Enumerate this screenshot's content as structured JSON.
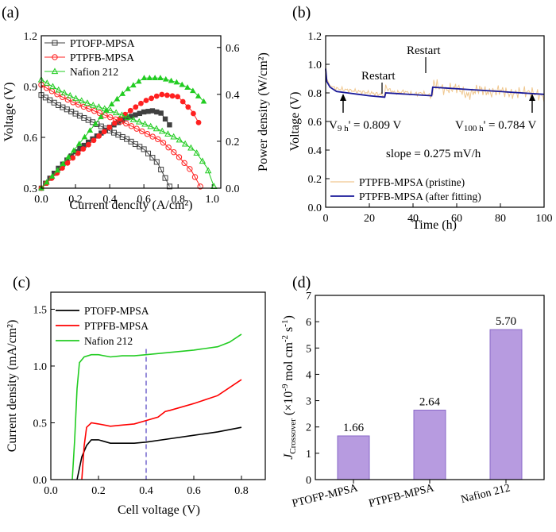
{
  "panels": {
    "a": {
      "tag": "(a)"
    },
    "b": {
      "tag": "(b)"
    },
    "c": {
      "tag": "(c)"
    },
    "d": {
      "tag": "(d)"
    }
  },
  "chart_data": [
    {
      "id": "a",
      "type": "line",
      "xlabel": "Current dencity (A/cm²)",
      "ylabel": "Voltage (V)",
      "y2label": "Power density (W/cm²)",
      "xlim": [
        0.0,
        1.05
      ],
      "ylim": [
        0.3,
        1.2
      ],
      "y2lim": [
        0.0,
        0.65
      ],
      "xticks": [
        "0.0",
        "0.2",
        "0.4",
        "0.6",
        "0.8",
        "1.0"
      ],
      "yticks": [
        "0.3",
        "0.6",
        "0.9",
        "1.2"
      ],
      "y2ticks": [
        "0.0",
        "0.2",
        "0.4",
        "0.6"
      ],
      "legend_position": "top-left",
      "series": [
        {
          "name": "PTOFP-MPSA",
          "color": "#404040",
          "marker": "open-square",
          "voltage": {
            "x": [
              0.0,
              0.1,
              0.2,
              0.3,
              0.4,
              0.5,
              0.6,
              0.68,
              0.75
            ],
            "y": [
              0.85,
              0.79,
              0.74,
              0.69,
              0.64,
              0.59,
              0.53,
              0.45,
              0.31
            ]
          },
          "power": {
            "x": [
              0.0,
              0.1,
              0.2,
              0.3,
              0.4,
              0.5,
              0.6,
              0.65,
              0.7,
              0.75
            ],
            "y": [
              0.0,
              0.085,
              0.155,
              0.21,
              0.26,
              0.3,
              0.325,
              0.33,
              0.32,
              0.27
            ]
          }
        },
        {
          "name": "PTPFB-MPSA",
          "color": "#ff2020",
          "marker": "open-circle",
          "voltage": {
            "x": [
              0.0,
              0.1,
              0.2,
              0.3,
              0.4,
              0.5,
              0.6,
              0.7,
              0.8,
              0.88,
              0.93
            ],
            "y": [
              0.91,
              0.85,
              0.8,
              0.76,
              0.72,
              0.68,
              0.63,
              0.58,
              0.49,
              0.4,
              0.31
            ]
          },
          "power": {
            "x": [
              0.0,
              0.1,
              0.2,
              0.3,
              0.4,
              0.5,
              0.6,
              0.7,
              0.8,
              0.88,
              0.92
            ],
            "y": [
              0.0,
              0.07,
              0.14,
              0.2,
              0.26,
              0.32,
              0.37,
              0.4,
              0.39,
              0.33,
              0.28
            ]
          }
        },
        {
          "name": "Nafion 212",
          "color": "#22cc22",
          "marker": "open-triangle",
          "voltage": {
            "x": [
              0.0,
              0.1,
              0.2,
              0.3,
              0.4,
              0.5,
              0.6,
              0.7,
              0.8,
              0.9,
              0.97,
              1.01
            ],
            "y": [
              0.94,
              0.88,
              0.83,
              0.79,
              0.76,
              0.72,
              0.68,
              0.64,
              0.59,
              0.52,
              0.42,
              0.31
            ]
          },
          "power": {
            "x": [
              0.0,
              0.1,
              0.2,
              0.3,
              0.4,
              0.5,
              0.6,
              0.7,
              0.8,
              0.88,
              0.95
            ],
            "y": [
              0.0,
              0.08,
              0.17,
              0.26,
              0.35,
              0.42,
              0.47,
              0.47,
              0.45,
              0.42,
              0.37
            ]
          }
        }
      ]
    },
    {
      "id": "b",
      "type": "line",
      "xlabel": "Time (h)",
      "ylabel": "Voltage (V)",
      "xlim": [
        0,
        100
      ],
      "ylim": [
        0.0,
        1.2
      ],
      "xticks": [
        "0",
        "20",
        "40",
        "60",
        "80",
        "100"
      ],
      "yticks": [
        "0.0",
        "0.2",
        "0.4",
        "0.6",
        "0.8",
        "1.0",
        "1.2"
      ],
      "annotations": [
        "Restart",
        "Restart",
        "V",
        "9 h",
        "' = 0.809 V",
        "V",
        "100 h",
        "' = 0.784 V",
        "slope = 0.275 mV/h"
      ],
      "legend_position": "bottom-left",
      "series": [
        {
          "name": "PTPFB-MPSA (pristine)",
          "color": "#f0c890",
          "x": [
            0,
            0.5,
            2,
            5,
            10,
            15,
            20,
            25,
            27,
            27.5,
            28,
            32,
            36,
            40,
            44,
            48,
            49,
            49.5,
            50,
            55,
            60,
            65,
            70,
            75,
            80,
            85,
            90,
            95,
            100
          ],
          "y": [
            0.99,
            0.9,
            0.85,
            0.83,
            0.82,
            0.81,
            0.8,
            0.79,
            0.78,
            0.86,
            0.83,
            0.8,
            0.81,
            0.79,
            0.8,
            0.78,
            0.78,
            0.89,
            0.86,
            0.82,
            0.84,
            0.78,
            0.83,
            0.8,
            0.82,
            0.79,
            0.81,
            0.8,
            0.77
          ]
        },
        {
          "name": "PTPFB-MPSA (after fitting)",
          "color": "#1a1a9a",
          "x": [
            0,
            0.5,
            2,
            5,
            10,
            15,
            20,
            27,
            27.5,
            48.5,
            49,
            100
          ],
          "y": [
            0.97,
            0.88,
            0.84,
            0.81,
            0.8,
            0.79,
            0.78,
            0.77,
            0.8,
            0.78,
            0.84,
            0.79
          ]
        }
      ]
    },
    {
      "id": "c",
      "type": "line",
      "xlabel": "Cell voltage (V)",
      "ylabel": "Current density (mA/cm²)",
      "xlim": [
        0.0,
        0.9
      ],
      "ylim": [
        0.0,
        1.65
      ],
      "xticks": [
        "0.0",
        "0.2",
        "0.4",
        "0.6",
        "0.8"
      ],
      "yticks": [
        "0.0",
        "0.5",
        "1.0",
        "1.5"
      ],
      "reference_line_x": 0.4,
      "legend_position": "top-left",
      "series": [
        {
          "name": "PTOFP-MPSA",
          "color": "#000000",
          "x": [
            0.11,
            0.13,
            0.15,
            0.17,
            0.2,
            0.25,
            0.3,
            0.35,
            0.4,
            0.5,
            0.6,
            0.7,
            0.8
          ],
          "y": [
            0.0,
            0.2,
            0.3,
            0.35,
            0.35,
            0.32,
            0.32,
            0.32,
            0.33,
            0.36,
            0.39,
            0.42,
            0.46
          ]
        },
        {
          "name": "PTPFB-MPSA",
          "color": "#ff0000",
          "x": [
            0.13,
            0.14,
            0.15,
            0.17,
            0.2,
            0.25,
            0.3,
            0.35,
            0.4,
            0.45,
            0.48,
            0.5,
            0.6,
            0.7,
            0.8
          ],
          "y": [
            0.0,
            0.3,
            0.46,
            0.5,
            0.49,
            0.47,
            0.48,
            0.49,
            0.52,
            0.55,
            0.6,
            0.61,
            0.67,
            0.74,
            0.88
          ]
        },
        {
          "name": "Nafion 212",
          "color": "#22cc22",
          "x": [
            0.09,
            0.1,
            0.11,
            0.12,
            0.14,
            0.17,
            0.2,
            0.25,
            0.3,
            0.35,
            0.4,
            0.5,
            0.6,
            0.7,
            0.75,
            0.8
          ],
          "y": [
            0.0,
            0.35,
            0.8,
            1.03,
            1.08,
            1.1,
            1.1,
            1.08,
            1.09,
            1.09,
            1.1,
            1.12,
            1.14,
            1.17,
            1.21,
            1.28
          ]
        }
      ]
    },
    {
      "id": "d",
      "type": "bar",
      "ylabel_main": "J",
      "ylabel_sub": "Crossover",
      "ylabel_rest": " (×10",
      "ylabel_exp1": "-9",
      "ylabel_mid": " mol cm",
      "ylabel_exp2": "-2",
      "ylabel_mid2": " s",
      "ylabel_exp3": "-1",
      "ylabel_end": ")",
      "ylim": [
        0,
        7
      ],
      "yticks": [
        "0",
        "1",
        "2",
        "3",
        "4",
        "5",
        "6",
        "7"
      ],
      "categories": [
        "PTOFP-MPSA",
        "PTPFB-MPSA",
        "Nafion 212"
      ],
      "values": [
        1.66,
        2.64,
        5.7
      ],
      "value_labels": [
        "1.66",
        "2.64",
        "5.70"
      ],
      "bar_color": "#b79be0"
    }
  ]
}
